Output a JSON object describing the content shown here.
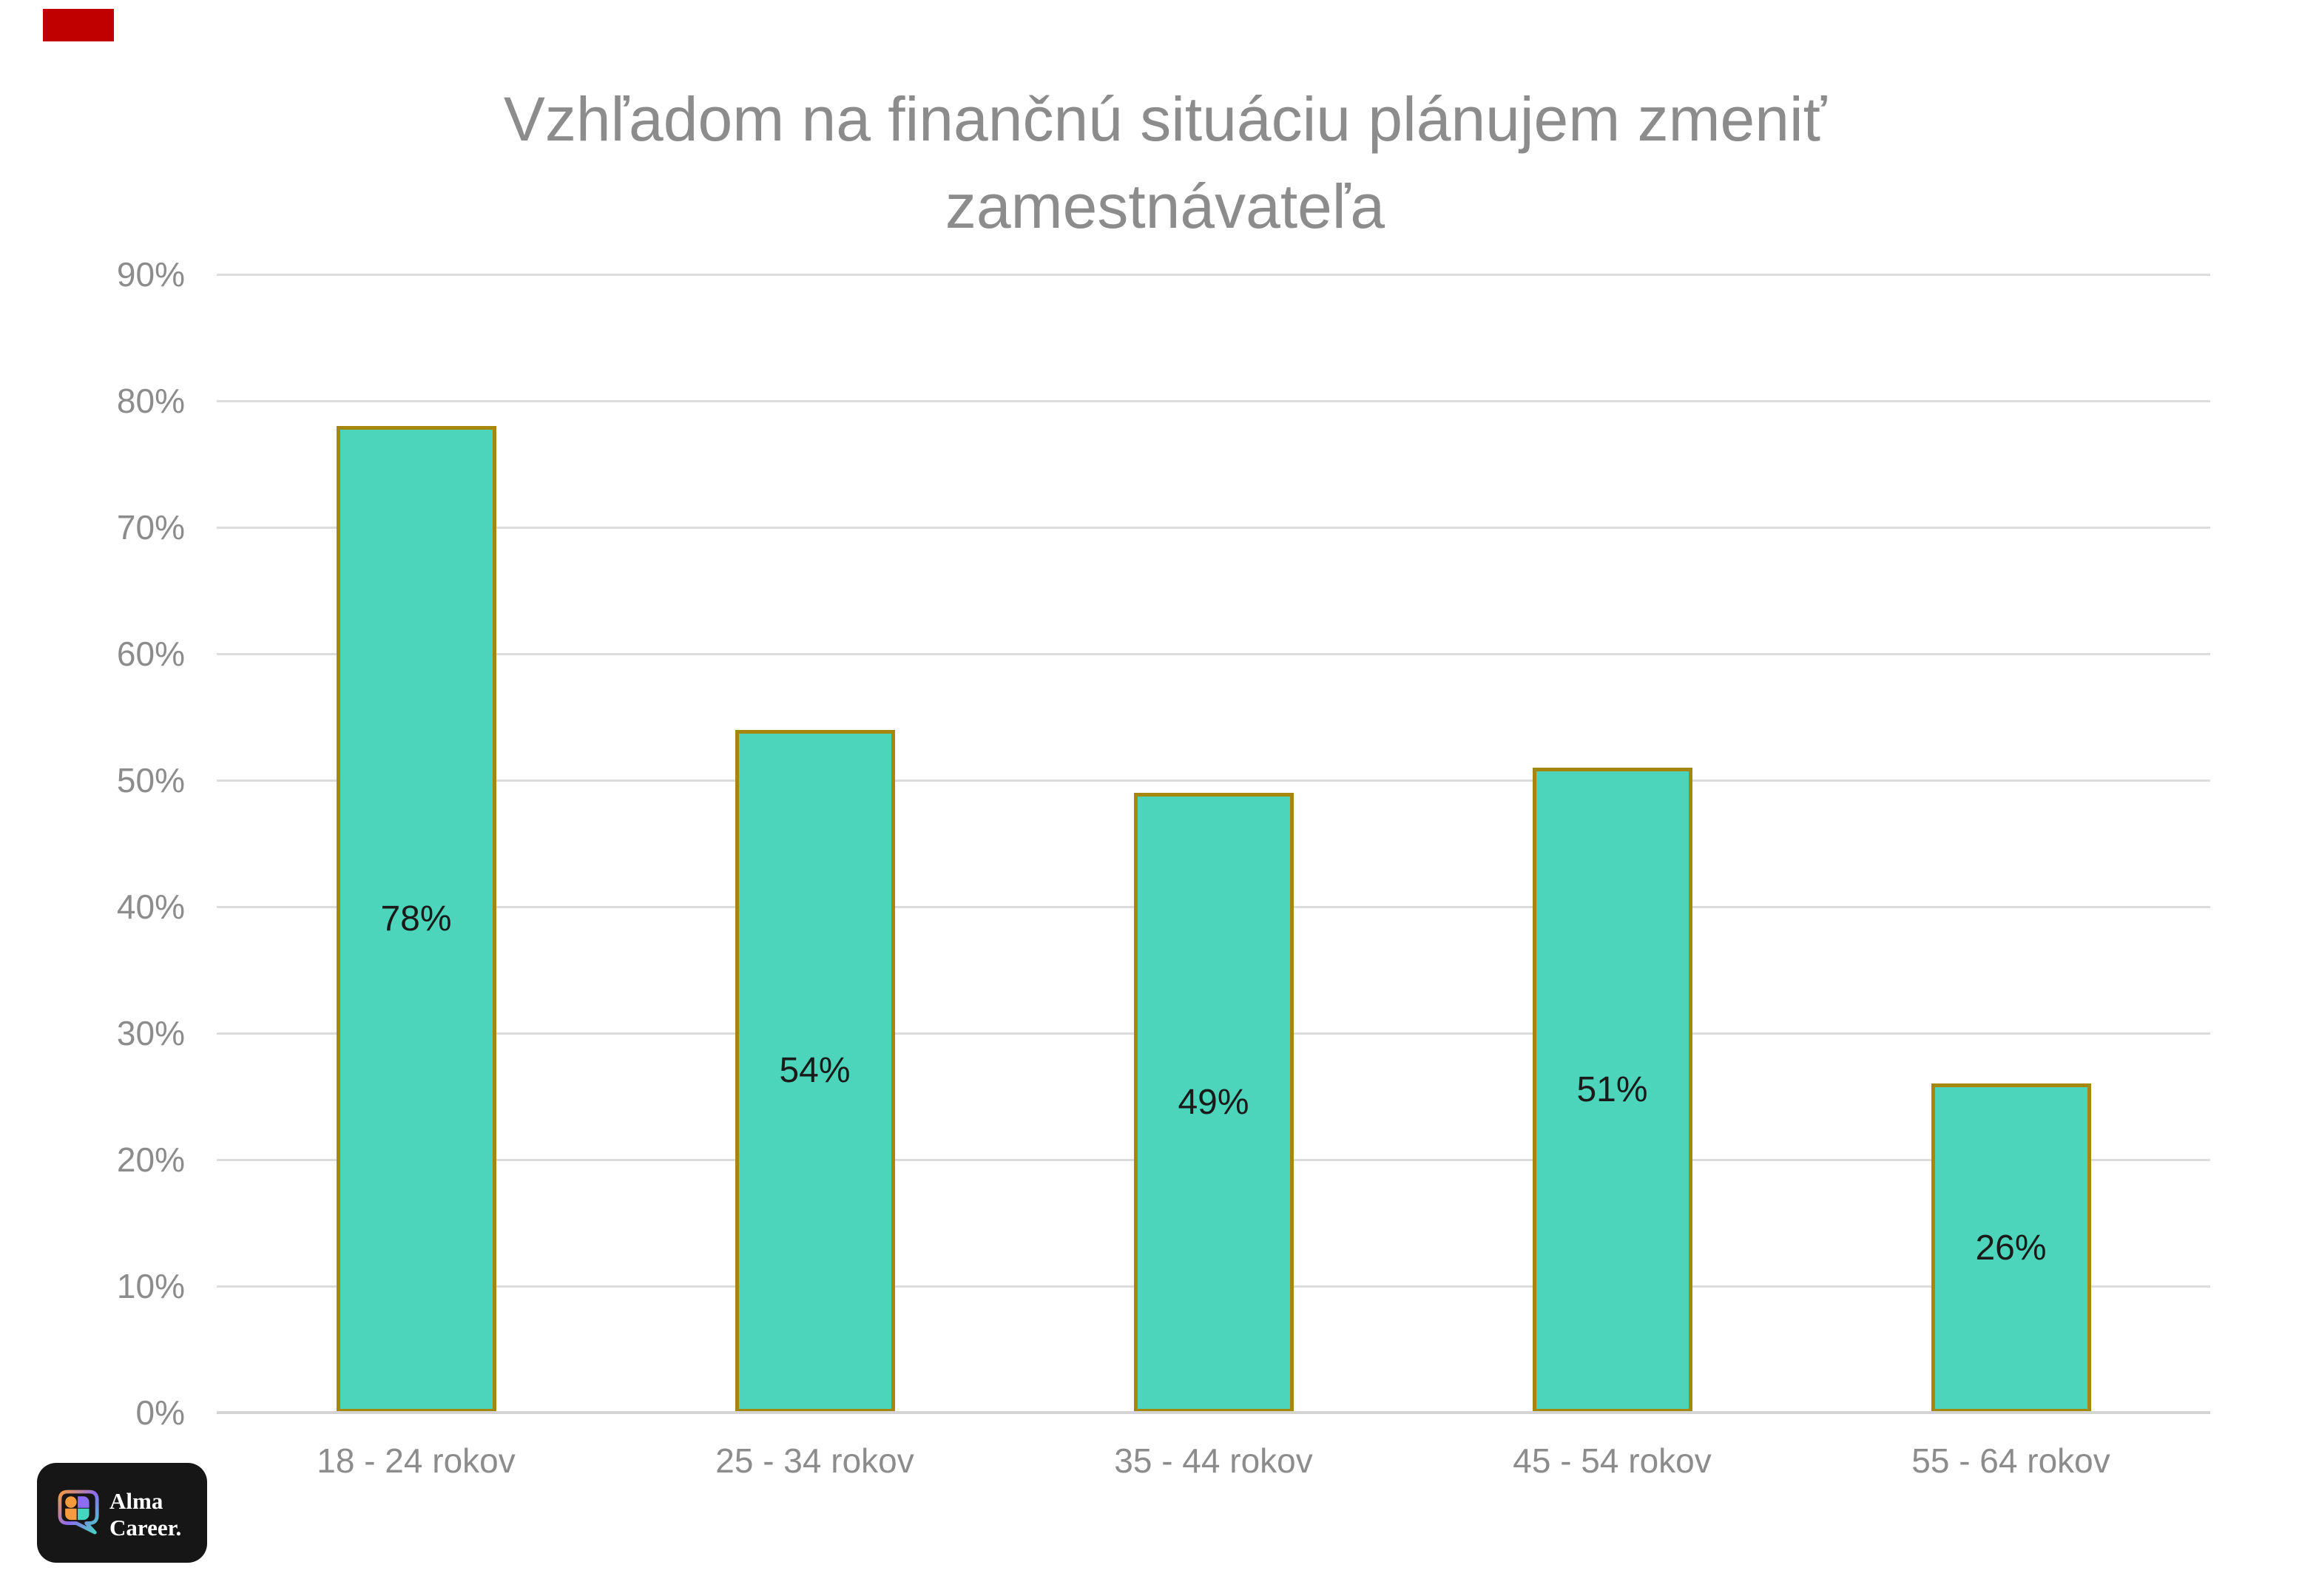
{
  "red_marker": {
    "color": "#C00000"
  },
  "title": {
    "line1": "Vzhľadom na finančnú situáciu plánujem zmeniť",
    "line2": "zamestnávateľa",
    "color": "#8C8C8C"
  },
  "chart_data": {
    "type": "bar",
    "title": "Vzhľadom na finančnú situáciu plánujem zmeniť zamestnávateľa",
    "categories": [
      "18 - 24 rokov",
      "25 - 34 rokov",
      "35 - 44 rokov",
      "45 - 54 rokov",
      "55 - 64 rokov"
    ],
    "values": [
      78,
      54,
      49,
      51,
      26
    ],
    "value_labels": [
      "78%",
      "54%",
      "49%",
      "51%",
      "26%"
    ],
    "xlabel": "",
    "ylabel": "",
    "ylim": [
      0,
      90
    ],
    "ytick_step": 10,
    "ytick_labels": [
      "0%",
      "10%",
      "20%",
      "30%",
      "40%",
      "50%",
      "60%",
      "70%",
      "80%",
      "90%"
    ],
    "grid": true,
    "legend": false,
    "value_label_position": "center-of-bar",
    "colors": {
      "bar_fill": "#4DD5BC",
      "bar_border": "#A6870E",
      "gridline": "#DCDCDC",
      "axis_line": "#D4D4D4",
      "axis_text": "#8C8C8C",
      "value_text": "#1A1A1A"
    }
  },
  "logo": {
    "line1": "Alma",
    "line2": "Career.",
    "bg": "#161616",
    "text_color": "#FFFFFF",
    "icon_colors": {
      "orange": "#F79B3E",
      "purple": "#8C6CF0",
      "teal": "#45D5C0"
    }
  }
}
